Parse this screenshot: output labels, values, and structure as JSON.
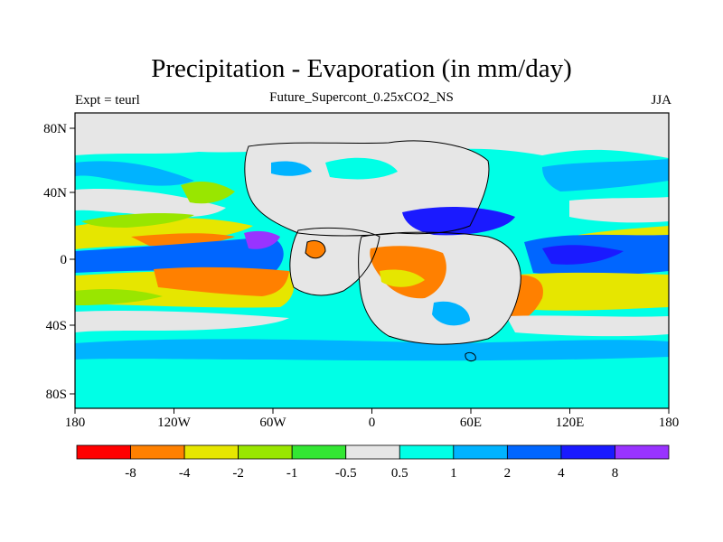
{
  "header": {
    "title": "Precipitation - Evaporation (in mm/day)",
    "subtitle": "Future_Supercont_0.25xCO2_NS",
    "left_label": "Expt = teurl",
    "right_label": "JJA"
  },
  "axes": {
    "lon_ticks": [
      "180",
      "120W",
      "60W",
      "0",
      "60E",
      "120E",
      "180"
    ],
    "lat_ticks": [
      "80N",
      "40N",
      "0",
      "40S",
      "80S"
    ]
  },
  "colorbar": {
    "colors": [
      "#ff0000",
      "#ff8000",
      "#e6e600",
      "#99e600",
      "#33e633",
      "#e6e6e6",
      "#00ffe6",
      "#00b3ff",
      "#0066ff",
      "#1a1aff",
      "#9933ff"
    ],
    "labels": [
      "-8",
      "-4",
      "-2",
      "-1",
      "-0.5",
      "0.5",
      "1",
      "2",
      "4",
      "8"
    ]
  },
  "palette": {
    "ocean_base": "#00ffe6",
    "neutral": "#e6e6e6"
  }
}
